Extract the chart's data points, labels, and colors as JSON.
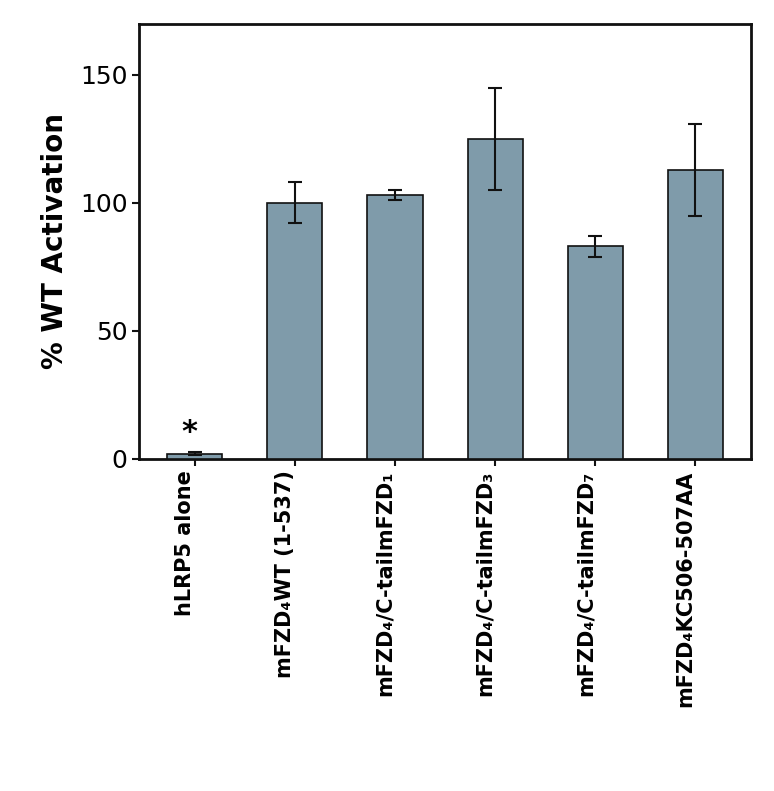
{
  "categories": [
    "hLRP5 alone",
    "mFZD₄WT (1-537)",
    "mFZD₄/C-tailmFZD₁",
    "mFZD₄/C-tailmFZD₃",
    "mFZD₄/C-tailmFZD₇",
    "mFZD₄KC506-507AA"
  ],
  "values": [
    2.0,
    100.0,
    103.0,
    125.0,
    83.0,
    113.0
  ],
  "errors": [
    0.5,
    8.0,
    2.0,
    20.0,
    4.0,
    18.0
  ],
  "bar_color": "#7f9baa",
  "ylabel": "% WT Activation",
  "ylim": [
    0,
    170
  ],
  "yticks": [
    0,
    50,
    100,
    150
  ],
  "bar_width": 0.55,
  "asterisk_bar": 0,
  "asterisk_text": "*",
  "figure_bg": "#ffffff",
  "axes_bg": "#ffffff",
  "edge_color": "#111111",
  "error_color": "#111111",
  "capsize": 5,
  "fontsize_ylabel": 20,
  "fontsize_yticks": 18,
  "fontsize_xticklabels": 15,
  "label_rotation": 90,
  "spine_linewidth": 2.0
}
